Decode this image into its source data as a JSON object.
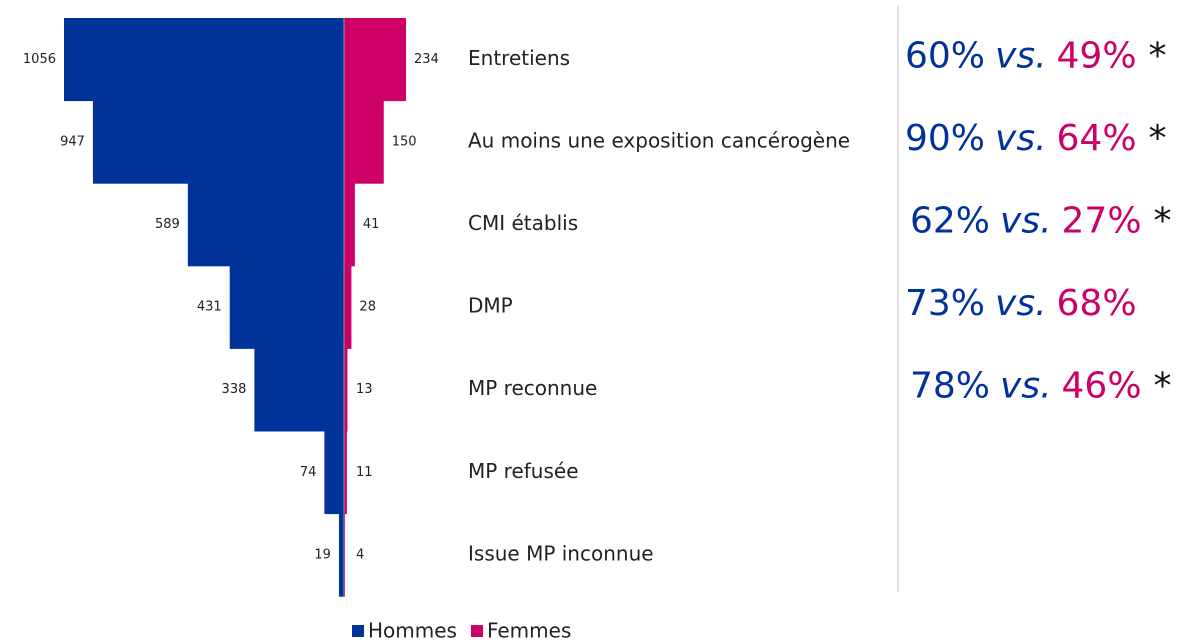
{
  "chart_data": {
    "type": "butterfly",
    "categories": [
      "Entretiens",
      "Au moins une exposition cancérogène",
      "CMI établis",
      "DMP",
      "MP reconnue",
      "MP refusée",
      "Issue MP inconnue"
    ],
    "series": [
      {
        "name": "Hommes",
        "color": "#003399",
        "values": [
          1056,
          947,
          589,
          431,
          338,
          74,
          19
        ]
      },
      {
        "name": "Femmes",
        "color": "#cc0066",
        "values": [
          234,
          150,
          41,
          28,
          13,
          11,
          4
        ]
      }
    ],
    "annotations": [
      {
        "men": "60%",
        "sep": "vs.",
        "women": "49%",
        "mark": "*"
      },
      {
        "men": "90%",
        "sep": "vs.",
        "women": "64%",
        "mark": "*"
      },
      {
        "men": "62%",
        "sep": "vs.",
        "women": "27%",
        "mark": "*"
      },
      {
        "men": "73%",
        "sep": "vs.",
        "women": "68%"
      },
      {
        "men": "78%",
        "sep": "vs.",
        "women": "46%",
        "mark": "*"
      }
    ]
  }
}
